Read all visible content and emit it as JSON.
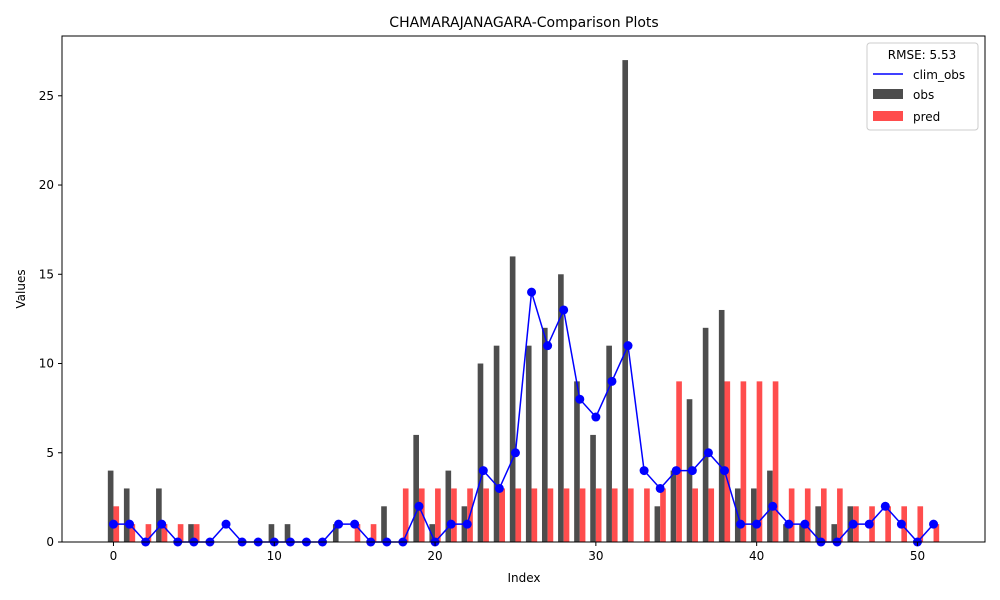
{
  "chart_data": {
    "type": "bar",
    "title": "CHAMARAJANAGARA-Comparison Plots",
    "xlabel": "Index",
    "ylabel": "Values",
    "xlim": [
      -3.2,
      54.2
    ],
    "ylim": [
      0,
      28.35
    ],
    "xticks": [
      0,
      10,
      20,
      30,
      40,
      50
    ],
    "yticks": [
      0,
      5,
      10,
      15,
      20,
      25
    ],
    "grid": false,
    "legend_title": "RMSE: 5.53",
    "legend_position": "top-right",
    "x": [
      0,
      1,
      2,
      3,
      4,
      5,
      6,
      7,
      8,
      9,
      10,
      11,
      12,
      13,
      14,
      15,
      16,
      17,
      18,
      19,
      20,
      21,
      22,
      23,
      24,
      25,
      26,
      27,
      28,
      29,
      30,
      31,
      32,
      33,
      34,
      35,
      36,
      37,
      38,
      39,
      40,
      41,
      42,
      43,
      44,
      45,
      46,
      47,
      48,
      49,
      50,
      51
    ],
    "series": [
      {
        "name": "clim_obs",
        "kind": "line",
        "color": "#0000ff",
        "values": [
          1,
          1,
          0,
          1,
          0,
          0,
          0,
          1,
          0,
          0,
          0,
          0,
          0,
          0,
          1,
          1,
          0,
          0,
          0,
          2,
          0,
          1,
          1,
          4,
          3,
          5,
          14,
          11,
          13,
          8,
          7,
          9,
          11,
          4,
          3,
          4,
          4,
          5,
          4,
          1,
          1,
          2,
          1,
          1,
          0,
          0,
          1,
          1,
          2,
          1,
          0,
          1
        ]
      },
      {
        "name": "obs",
        "kind": "bar",
        "color": "#4d4d4d",
        "values": [
          4,
          3,
          0,
          3,
          0,
          1,
          0,
          0,
          0,
          0,
          1,
          1,
          0,
          0,
          1,
          0,
          0,
          2,
          0,
          6,
          1,
          4,
          2,
          10,
          11,
          16,
          11,
          12,
          15,
          9,
          6,
          11,
          27,
          0,
          2,
          4,
          8,
          12,
          13,
          3,
          3,
          4,
          1,
          1,
          2,
          1,
          2,
          0,
          0,
          0,
          0,
          0
        ]
      },
      {
        "name": "pred",
        "kind": "bar",
        "color": "#ff4d4d",
        "values": [
          2,
          1,
          1,
          1,
          1,
          1,
          0,
          0,
          0,
          0,
          0,
          0,
          0,
          0,
          0,
          1,
          1,
          0,
          3,
          3,
          3,
          3,
          3,
          3,
          3,
          3,
          3,
          3,
          3,
          3,
          3,
          3,
          3,
          3,
          3,
          9,
          3,
          3,
          9,
          9,
          9,
          9,
          3,
          3,
          3,
          3,
          2,
          2,
          2,
          2,
          2,
          1
        ]
      }
    ]
  }
}
